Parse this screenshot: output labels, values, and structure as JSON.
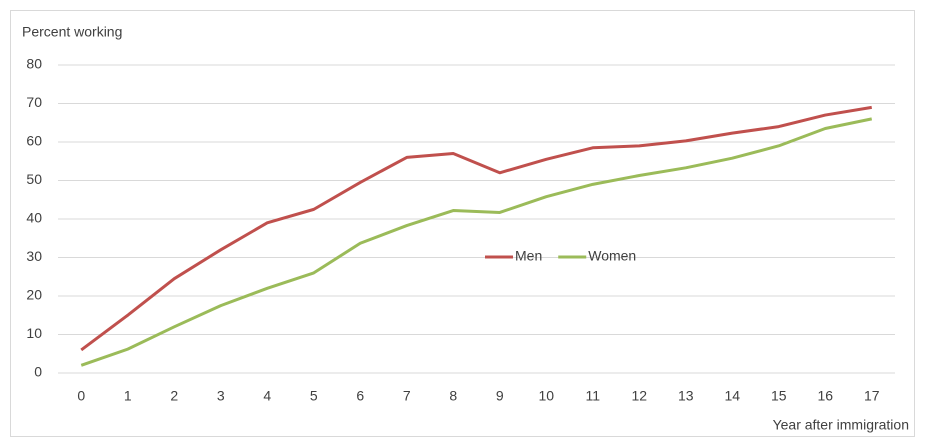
{
  "chart_data": {
    "type": "line",
    "y_label": "Percent working",
    "x_label": "Year after immigration",
    "categories": [
      "0",
      "1",
      "2",
      "3",
      "4",
      "5",
      "6",
      "7",
      "8",
      "9",
      "10",
      "11",
      "12",
      "13",
      "14",
      "15",
      "16",
      "17"
    ],
    "series": [
      {
        "name": "Men",
        "color": "#c0504d",
        "values": [
          6,
          15,
          24.5,
          32,
          39,
          42.5,
          49.5,
          56,
          57,
          52,
          55.5,
          58.5,
          59,
          60.3,
          62.3,
          64,
          67,
          69
        ]
      },
      {
        "name": "Women",
        "color": "#9bbb59",
        "values": [
          2,
          6.2,
          12,
          17.5,
          22,
          26,
          33.7,
          38.3,
          42.2,
          41.7,
          45.8,
          49,
          51.3,
          53.3,
          55.8,
          59,
          63.5,
          66
        ]
      }
    ],
    "ylim": [
      0,
      80
    ],
    "yticks": [
      0,
      10,
      20,
      30,
      40,
      50,
      60,
      70,
      80
    ],
    "grid": true,
    "legend": "center"
  }
}
